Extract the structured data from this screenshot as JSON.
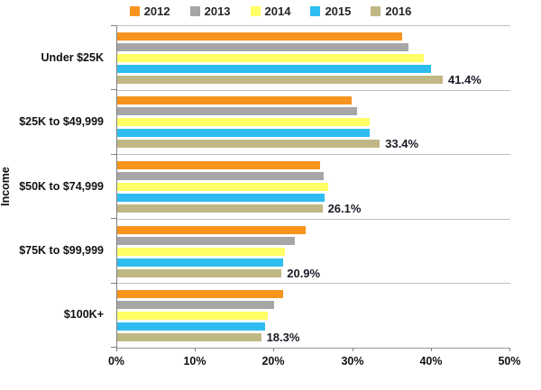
{
  "chart_data": {
    "type": "bar",
    "orientation": "horizontal",
    "title": "",
    "xlabel": "",
    "ylabel": "Income",
    "legend_position": "top",
    "grid": "category-separator-lines",
    "xlim": [
      0,
      50
    ],
    "x_ticks": [
      {
        "value": 0,
        "label": "0%"
      },
      {
        "value": 10,
        "label": "10%"
      },
      {
        "value": 20,
        "label": "20%"
      },
      {
        "value": 30,
        "label": "30%"
      },
      {
        "value": 40,
        "label": "40%"
      },
      {
        "value": 50,
        "label": "50%"
      }
    ],
    "categories": [
      "Under $25K",
      "$25K to $49,999",
      "$50K to $74,999",
      "$75K to $99,999",
      "$100K+"
    ],
    "series": [
      {
        "name": "2012",
        "color": "#F7941E",
        "values": [
          36.2,
          29.8,
          25.8,
          24.0,
          21.1
        ],
        "show_labels": false
      },
      {
        "name": "2013",
        "color": "#A6A6A6",
        "values": [
          37.0,
          30.5,
          26.3,
          22.6,
          19.9
        ],
        "show_labels": false
      },
      {
        "name": "2014",
        "color": "#FFFF66",
        "values": [
          39.0,
          32.1,
          26.8,
          21.3,
          19.2
        ],
        "show_labels": false
      },
      {
        "name": "2015",
        "color": "#2FBDF1",
        "values": [
          39.9,
          32.1,
          26.4,
          21.1,
          18.8
        ],
        "show_labels": false
      },
      {
        "name": "2016",
        "color": "#BFB884",
        "values": [
          41.4,
          33.4,
          26.1,
          20.9,
          18.3
        ],
        "show_labels": true
      }
    ],
    "data_labels": [
      "41.4%",
      "33.4%",
      "26.1%",
      "20.9%",
      "18.3%"
    ]
  },
  "colors": {
    "separator_line": "#c0c0c0",
    "axis_line": "#808080",
    "text": "#111111",
    "data_label_text": "#1a1a26"
  }
}
